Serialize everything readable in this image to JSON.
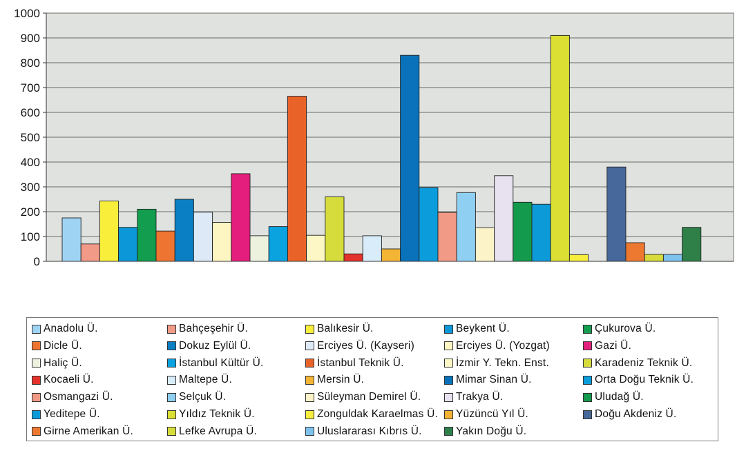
{
  "chart_data": {
    "type": "bar",
    "title": "",
    "xlabel": "",
    "ylabel": "",
    "ylim": [
      0,
      1000
    ],
    "yticks": [
      0,
      100,
      200,
      300,
      400,
      500,
      600,
      700,
      800,
      900,
      1000
    ],
    "grid": true,
    "legend_position": "bottom",
    "plot_background": "#dfe2de",
    "series": [
      {
        "name": "Anadolu Ü.",
        "color": "#9fd3f3",
        "value": 175
      },
      {
        "name": "Bahçeşehir Ü.",
        "color": "#f19a87",
        "value": 70
      },
      {
        "name": "Balıkesir Ü.",
        "color": "#f9ef3b",
        "value": 243
      },
      {
        "name": "Beykent Ü.",
        "color": "#0b97d8",
        "value": 137
      },
      {
        "name": "Çukurova Ü.",
        "color": "#129d4f",
        "value": 210
      },
      {
        "name": "Dicle Ü.",
        "color": "#ee7431",
        "value": 122
      },
      {
        "name": "Dokuz Eylül Ü.",
        "color": "#0b7fc4",
        "value": 250
      },
      {
        "name": "Erciyes Ü. (Kayseri)",
        "color": "#dde9f7",
        "value": 198
      },
      {
        "name": "Erciyes Ü. (Yozgat)",
        "color": "#fdf6c3",
        "value": 157
      },
      {
        "name": "Gazi Ü.",
        "color": "#e41e7d",
        "value": 353
      },
      {
        "name": "Haliç Ü.",
        "color": "#edf2df",
        "value": 103
      },
      {
        "name": "İstanbul Kültür Ü.",
        "color": "#0ba2e0",
        "value": 140
      },
      {
        "name": "İstanbul Teknik Ü.",
        "color": "#e96329",
        "value": 665
      },
      {
        "name": "İzmir Y. Tekn. Enst.",
        "color": "#fdf7c6",
        "value": 105
      },
      {
        "name": "Karadeniz Teknik Ü.",
        "color": "#d5dc3c",
        "value": 260
      },
      {
        "name": "Kocaeli Ü.",
        "color": "#e3312b",
        "value": 30
      },
      {
        "name": "Maltepe Ü.",
        "color": "#d9ecf9",
        "value": 103
      },
      {
        "name": "Mersin Ü.",
        "color": "#f4b434",
        "value": 50
      },
      {
        "name": "Mimar Sinan Ü.",
        "color": "#0a72bb",
        "value": 830
      },
      {
        "name": "Orta Doğu Teknik Ü.",
        "color": "#0b9ddb",
        "value": 297
      },
      {
        "name": "Osmangazi Ü.",
        "color": "#f19a86",
        "value": 197
      },
      {
        "name": "Selçuk Ü.",
        "color": "#8fd0f2",
        "value": 277
      },
      {
        "name": "Süleyman Demirel Ü.",
        "color": "#fcf4c8",
        "value": 135
      },
      {
        "name": "Trakya Ü.",
        "color": "#e8e1ef",
        "value": 345
      },
      {
        "name": "Uludağ Ü.",
        "color": "#139a4c",
        "value": 238
      },
      {
        "name": "Yeditepe Ü.",
        "color": "#0c9ad8",
        "value": 230
      },
      {
        "name": "Yıldız Teknik Ü.",
        "color": "#dcdf33",
        "value": 910
      },
      {
        "name": "Zonguldak Karaelmas Ü.",
        "color": "#f7ed3c",
        "value": 27
      },
      {
        "name": "Yüzüncü Yıl Ü.",
        "color": "#f5b333",
        "value": 0
      },
      {
        "name": "Doğu Akdeniz Ü.",
        "color": "#46689a",
        "value": 380
      },
      {
        "name": "Girne Amerikan Ü.",
        "color": "#ed782f",
        "value": 75
      },
      {
        "name": "Lefke Avrupa Ü.",
        "color": "#d7dc3a",
        "value": 28
      },
      {
        "name": "Uluslararası Kıbrıs Ü.",
        "color": "#7cc2ec",
        "value": 28
      },
      {
        "name": "Yakın Doğu Ü.",
        "color": "#2e8048",
        "value": 137
      }
    ]
  }
}
